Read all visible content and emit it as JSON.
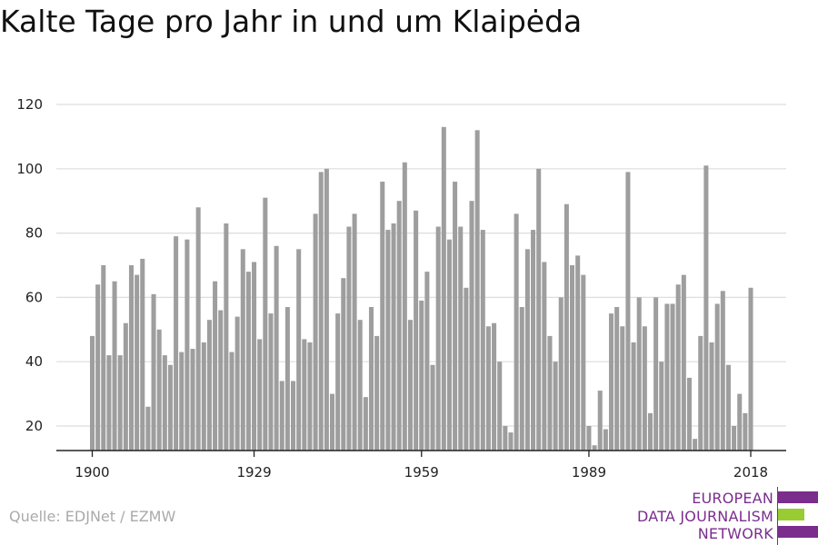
{
  "colors": {
    "bar": "#9e9e9e",
    "grid": "#dddddd",
    "axis": "#222222",
    "logo_purple": "#7b2d8e",
    "logo_green": "#99cc33"
  },
  "source": "Quelle: EDJNet / EZMW",
  "logo": {
    "lines": [
      "EUROPEAN",
      "DATA JOURNALISM",
      "NETWORK"
    ]
  },
  "chart_data": {
    "type": "bar",
    "title": "Kalte Tage pro Jahr in und um Klaipėda",
    "xlabel": "",
    "ylabel": "",
    "ylim": [
      12,
      120
    ],
    "yticks": [
      20,
      40,
      60,
      80,
      100,
      120
    ],
    "xticks": [
      1900,
      1929,
      1959,
      1989,
      2018
    ],
    "grid": true,
    "x": [
      1900,
      1901,
      1902,
      1903,
      1904,
      1905,
      1906,
      1907,
      1908,
      1909,
      1910,
      1911,
      1912,
      1913,
      1914,
      1915,
      1916,
      1917,
      1918,
      1919,
      1920,
      1921,
      1922,
      1923,
      1924,
      1925,
      1926,
      1927,
      1928,
      1929,
      1930,
      1931,
      1932,
      1933,
      1934,
      1935,
      1936,
      1937,
      1938,
      1939,
      1940,
      1941,
      1942,
      1943,
      1944,
      1945,
      1946,
      1947,
      1948,
      1949,
      1950,
      1951,
      1952,
      1953,
      1954,
      1955,
      1956,
      1957,
      1958,
      1959,
      1960,
      1961,
      1962,
      1963,
      1964,
      1965,
      1966,
      1967,
      1968,
      1969,
      1970,
      1971,
      1972,
      1973,
      1974,
      1975,
      1976,
      1977,
      1978,
      1979,
      1980,
      1981,
      1982,
      1983,
      1984,
      1985,
      1986,
      1987,
      1988,
      1989,
      1990,
      1991,
      1992,
      1993,
      1994,
      1995,
      1996,
      1997,
      1998,
      1999,
      2000,
      2001,
      2002,
      2003,
      2004,
      2005,
      2006,
      2007,
      2008,
      2009,
      2010,
      2011,
      2012,
      2013,
      2014,
      2015,
      2016,
      2017,
      2018
    ],
    "values": [
      48,
      64,
      70,
      42,
      65,
      42,
      52,
      70,
      67,
      72,
      26,
      61,
      50,
      42,
      39,
      79,
      43,
      78,
      44,
      88,
      46,
      53,
      65,
      56,
      83,
      43,
      54,
      75,
      68,
      71,
      47,
      91,
      55,
      76,
      34,
      57,
      34,
      75,
      47,
      46,
      86,
      99,
      100,
      30,
      55,
      66,
      82,
      86,
      53,
      29,
      57,
      48,
      96,
      81,
      83,
      90,
      102,
      53,
      87,
      59,
      68,
      39,
      82,
      113,
      78,
      96,
      82,
      63,
      90,
      112,
      81,
      51,
      52,
      40,
      20,
      18,
      86,
      57,
      75,
      81,
      100,
      71,
      48,
      40,
      60,
      89,
      70,
      73,
      67,
      20,
      14,
      31,
      19,
      55,
      57,
      51,
      99,
      46,
      60,
      51,
      24,
      60,
      40,
      58,
      58,
      64,
      67,
      35,
      16,
      48,
      101,
      46,
      58,
      62,
      39,
      20,
      30,
      24,
      63
    ]
  }
}
